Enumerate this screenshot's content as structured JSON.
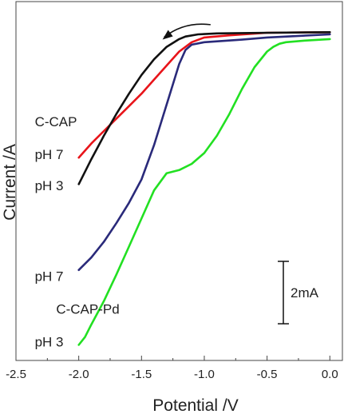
{
  "chart_data": {
    "type": "line",
    "title": "",
    "xlabel": "Potential /V",
    "ylabel": "Current /A",
    "xlim": [
      -2.5,
      0.1
    ],
    "ylim": [
      -10.5,
      1.0
    ],
    "xticks": [
      "-2.5",
      "-2.0",
      "-1.5",
      "-1.0",
      "-0.5",
      "0.0"
    ],
    "xtick_values": [
      -2.5,
      -2.0,
      -1.5,
      -1.0,
      -0.5,
      0.0
    ],
    "grid": false,
    "legend": "none",
    "scale_bar": {
      "label": "2mA",
      "value_mA": 2
    },
    "scan_arrow": {
      "direction": "negative",
      "from": [
        -0.95,
        0.26
      ],
      "to": [
        -1.32,
        -0.14
      ]
    },
    "annotations": [
      {
        "text": "C-CAP",
        "at": [
          -2.35,
          -3.0
        ]
      },
      {
        "text": "pH 7",
        "at": [
          -2.35,
          -4.05
        ]
      },
      {
        "text": "pH 3",
        "at": [
          -2.35,
          -5.05
        ]
      },
      {
        "text": "pH 7",
        "at": [
          -2.35,
          -7.95
        ]
      },
      {
        "text": "C-CAP-Pd",
        "at": [
          -2.18,
          -9.0
        ]
      },
      {
        "text": "pH 3",
        "at": [
          -2.35,
          -10.05
        ]
      }
    ],
    "series": [
      {
        "label": "C-CAP pH 7",
        "color": "#e8141a",
        "x": [
          -2.0,
          -1.9,
          -1.8,
          -1.7,
          -1.6,
          -1.5,
          -1.4,
          -1.3,
          -1.2,
          -1.1,
          -1.0,
          -0.8,
          -0.5,
          0.0
        ],
        "y": [
          -4.0,
          -3.55,
          -3.15,
          -2.75,
          -2.35,
          -1.95,
          -1.5,
          -1.05,
          -0.6,
          -0.3,
          -0.15,
          -0.08,
          0.0,
          0.02
        ]
      },
      {
        "label": "C-CAP pH 3",
        "color": "#111111",
        "x": [
          -2.0,
          -1.9,
          -1.8,
          -1.7,
          -1.6,
          -1.5,
          -1.4,
          -1.3,
          -1.2,
          -1.15,
          -1.05,
          -0.9,
          -0.5,
          0.0
        ],
        "y": [
          -4.85,
          -4.05,
          -3.3,
          -2.6,
          -1.95,
          -1.35,
          -0.85,
          -0.45,
          -0.2,
          -0.12,
          -0.05,
          -0.02,
          0.0,
          0.02
        ]
      },
      {
        "label": "C-CAP-Pd pH 7",
        "color": "#2a2a7a",
        "x": [
          -2.0,
          -1.9,
          -1.8,
          -1.7,
          -1.6,
          -1.5,
          -1.4,
          -1.3,
          -1.2,
          -1.15,
          -1.1,
          -1.0,
          -0.7,
          -0.5,
          0.0
        ],
        "y": [
          -7.6,
          -7.2,
          -6.7,
          -6.1,
          -5.45,
          -4.7,
          -3.6,
          -2.3,
          -1.0,
          -0.55,
          -0.38,
          -0.3,
          -0.22,
          -0.15,
          -0.05
        ]
      },
      {
        "label": "C-CAP-Pd pH 3",
        "color": "#22e022",
        "x": [
          -2.0,
          -1.95,
          -1.9,
          -1.8,
          -1.7,
          -1.6,
          -1.5,
          -1.4,
          -1.3,
          -1.2,
          -1.1,
          -1.0,
          -0.9,
          -0.8,
          -0.7,
          -0.6,
          -0.5,
          -0.45,
          -0.4,
          -0.35,
          -0.2,
          0.0
        ],
        "y": [
          -10.0,
          -9.75,
          -9.35,
          -8.6,
          -7.75,
          -6.85,
          -5.95,
          -5.05,
          -4.5,
          -4.4,
          -4.2,
          -3.85,
          -3.3,
          -2.6,
          -1.8,
          -1.1,
          -0.6,
          -0.45,
          -0.35,
          -0.3,
          -0.25,
          -0.2
        ]
      }
    ]
  }
}
